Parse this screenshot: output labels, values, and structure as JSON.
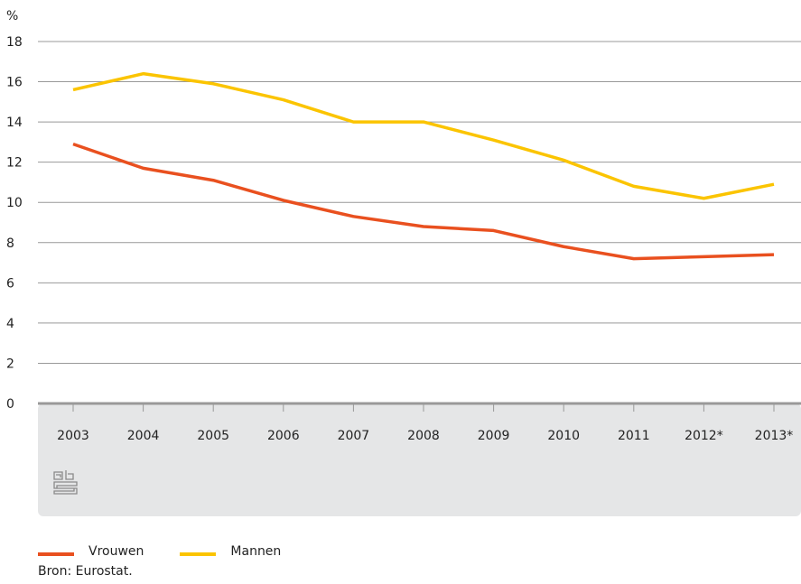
{
  "chart_data": {
    "type": "line",
    "categories": [
      "2003",
      "2004",
      "2005",
      "2006",
      "2007",
      "2008",
      "2009",
      "2010",
      "2011",
      "2012*",
      "2013*"
    ],
    "series": [
      {
        "name": "Vrouwen",
        "color": "#e9501f",
        "values": [
          12.9,
          11.7,
          11.1,
          10.1,
          9.3,
          8.8,
          8.6,
          7.8,
          7.2,
          7.3,
          7.4
        ]
      },
      {
        "name": "Mannen",
        "color": "#fbc400",
        "values": [
          15.6,
          16.4,
          15.9,
          15.1,
          14.0,
          14.0,
          13.1,
          12.1,
          10.8,
          10.2,
          10.9
        ]
      }
    ],
    "ylabel": "%",
    "ylim": [
      0,
      18
    ],
    "yticks": [
      0,
      2,
      4,
      6,
      8,
      10,
      12,
      14,
      16,
      18
    ],
    "grid": true,
    "legend_position": "bottom-left"
  },
  "legend": {
    "vrouwen": "Vrouwen",
    "mannen": "Mannen"
  },
  "source": "Bron: Eurostat.",
  "logo_icon": "cbs-logo-icon",
  "colors": {
    "axis_band": "#e5e6e7",
    "grid": "#999999",
    "axis": "#999999"
  }
}
